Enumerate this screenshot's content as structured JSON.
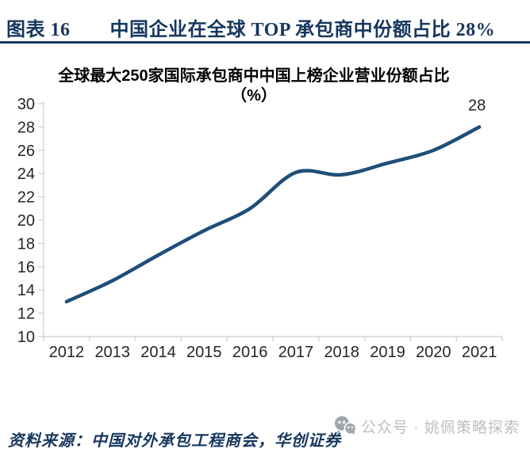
{
  "header": {
    "label": "图表 16",
    "title": "中国企业在全球 TOP 承包商中份额占比 28%"
  },
  "chart_data": {
    "type": "line",
    "title": "全球最大250家国际承包商中中国上榜企业营业份额占比",
    "title_line2": "（%）",
    "categories": [
      "2012",
      "2013",
      "2014",
      "2015",
      "2016",
      "2017",
      "2018",
      "2019",
      "2020",
      "2021"
    ],
    "series": [
      {
        "name": "中国上榜企业营业份额占比(%)",
        "values": [
          13.0,
          14.8,
          17.0,
          19.1,
          21.0,
          24.1,
          23.9,
          24.9,
          26.0,
          28.0
        ]
      }
    ],
    "end_label": "28",
    "xlabel": "",
    "ylabel": "",
    "ylim": [
      10,
      30
    ],
    "ytick_step": 2,
    "grid": false,
    "legend_position": "none",
    "line_color": "#1f4e79",
    "axis_color": "#d6d6d6",
    "tick_label_color": "#262626"
  },
  "footer": {
    "source": "资料来源：中国对外承包工程商会，华创证券",
    "watermark": "公众号 · 姚佩策略探索",
    "watermark_icon": "wechat-icon"
  },
  "colors": {
    "accent_navy": "#17375e",
    "line_blue": "#1f4e79",
    "watermark_gray": "#bcbec1"
  }
}
